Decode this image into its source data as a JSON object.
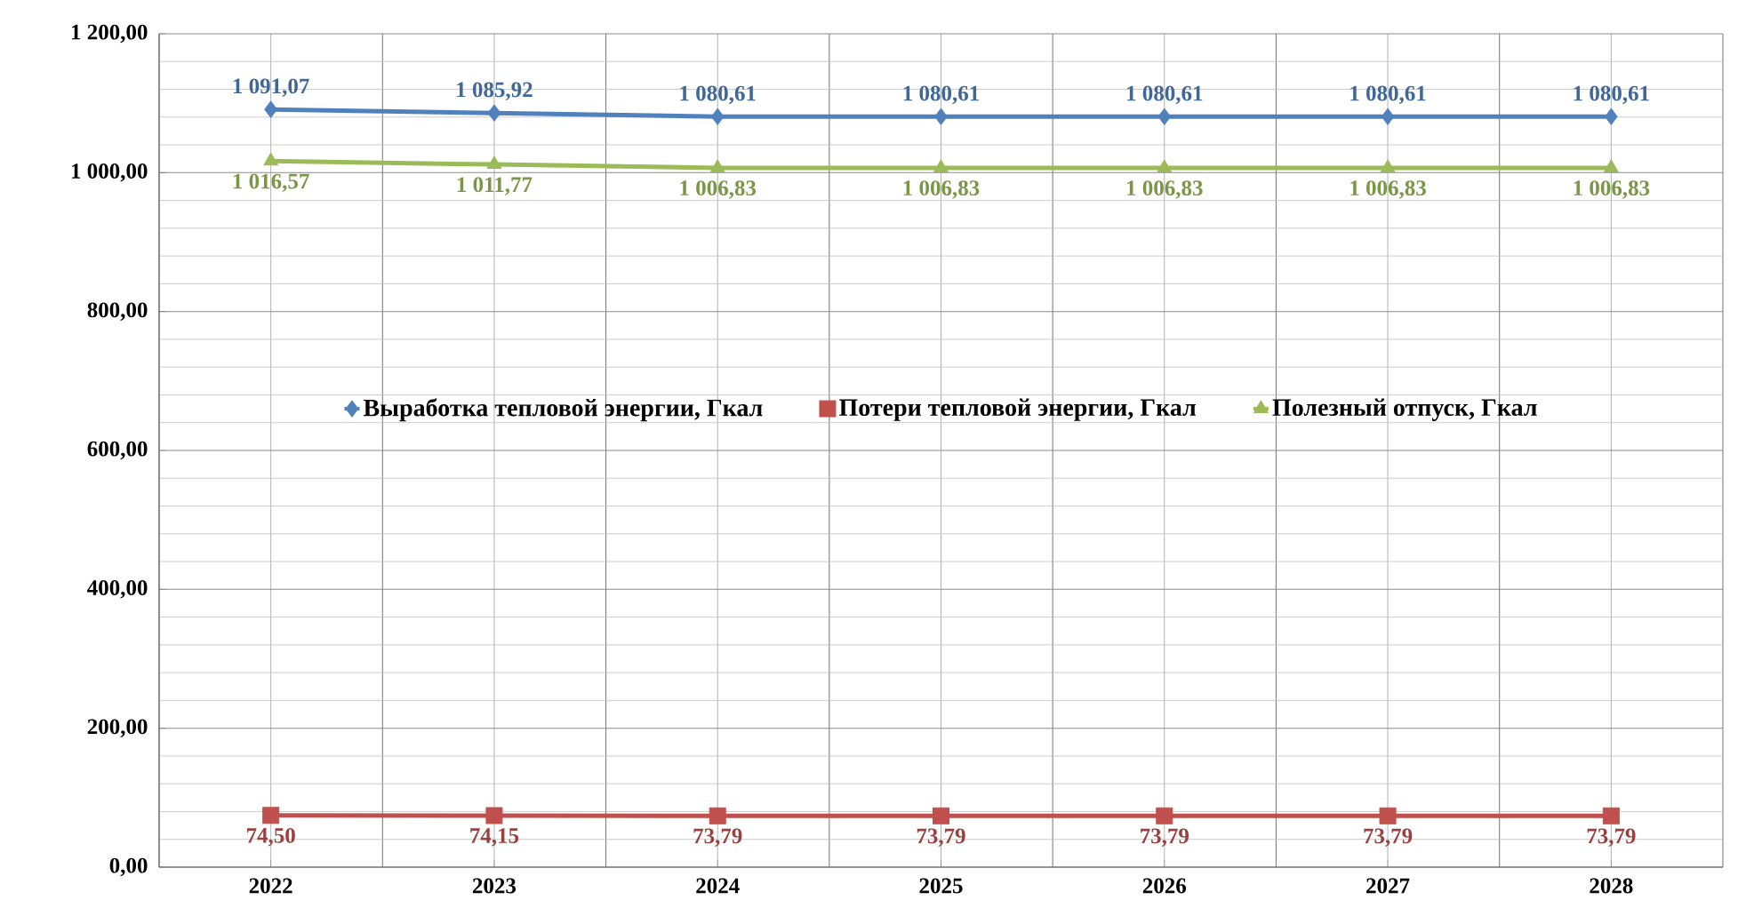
{
  "chart_data": {
    "type": "line",
    "categories": [
      "2022",
      "2023",
      "2024",
      "2025",
      "2026",
      "2027",
      "2028"
    ],
    "series": [
      {
        "name": "Выработка тепловой энергии, Гкал",
        "color": "#4f81bd",
        "marker": "diamond",
        "values": [
          1091.07,
          1085.92,
          1080.61,
          1080.61,
          1080.61,
          1080.61,
          1080.61
        ],
        "value_labels": [
          "1 091,07",
          "1 085,92",
          "1 080,61",
          "1 080,61",
          "1 080,61",
          "1 080,61",
          "1 080,61"
        ]
      },
      {
        "name": "Потери тепловой энергии, Гкал",
        "color": "#c0504d",
        "marker": "square",
        "values": [
          74.5,
          74.15,
          73.79,
          73.79,
          73.79,
          73.79,
          73.79
        ],
        "value_labels": [
          "74,50",
          "74,15",
          "73,79",
          "73,79",
          "73,79",
          "73,79",
          "73,79"
        ]
      },
      {
        "name": "Полезный отпуск, Гкал",
        "color": "#9bbb59",
        "marker": "triangle",
        "values": [
          1016.57,
          1011.77,
          1006.83,
          1006.83,
          1006.83,
          1006.83,
          1006.83
        ],
        "value_labels": [
          "1 016,57",
          "1 011,77",
          "1 006,83",
          "1 006,83",
          "1 006,83",
          "1 006,83",
          "1 006,83"
        ]
      }
    ],
    "ylim": [
      0,
      1200
    ],
    "yticks": [
      {
        "value": 0,
        "label": "0,00"
      },
      {
        "value": 200,
        "label": "200,00"
      },
      {
        "value": 400,
        "label": "400,00"
      },
      {
        "value": 600,
        "label": "600,00"
      },
      {
        "value": 800,
        "label": "800,00"
      },
      {
        "value": 1000,
        "label": "1 000,00"
      },
      {
        "value": 1200,
        "label": "1 200,00"
      }
    ],
    "grid": true,
    "legend": "center",
    "line_style": "solid"
  }
}
